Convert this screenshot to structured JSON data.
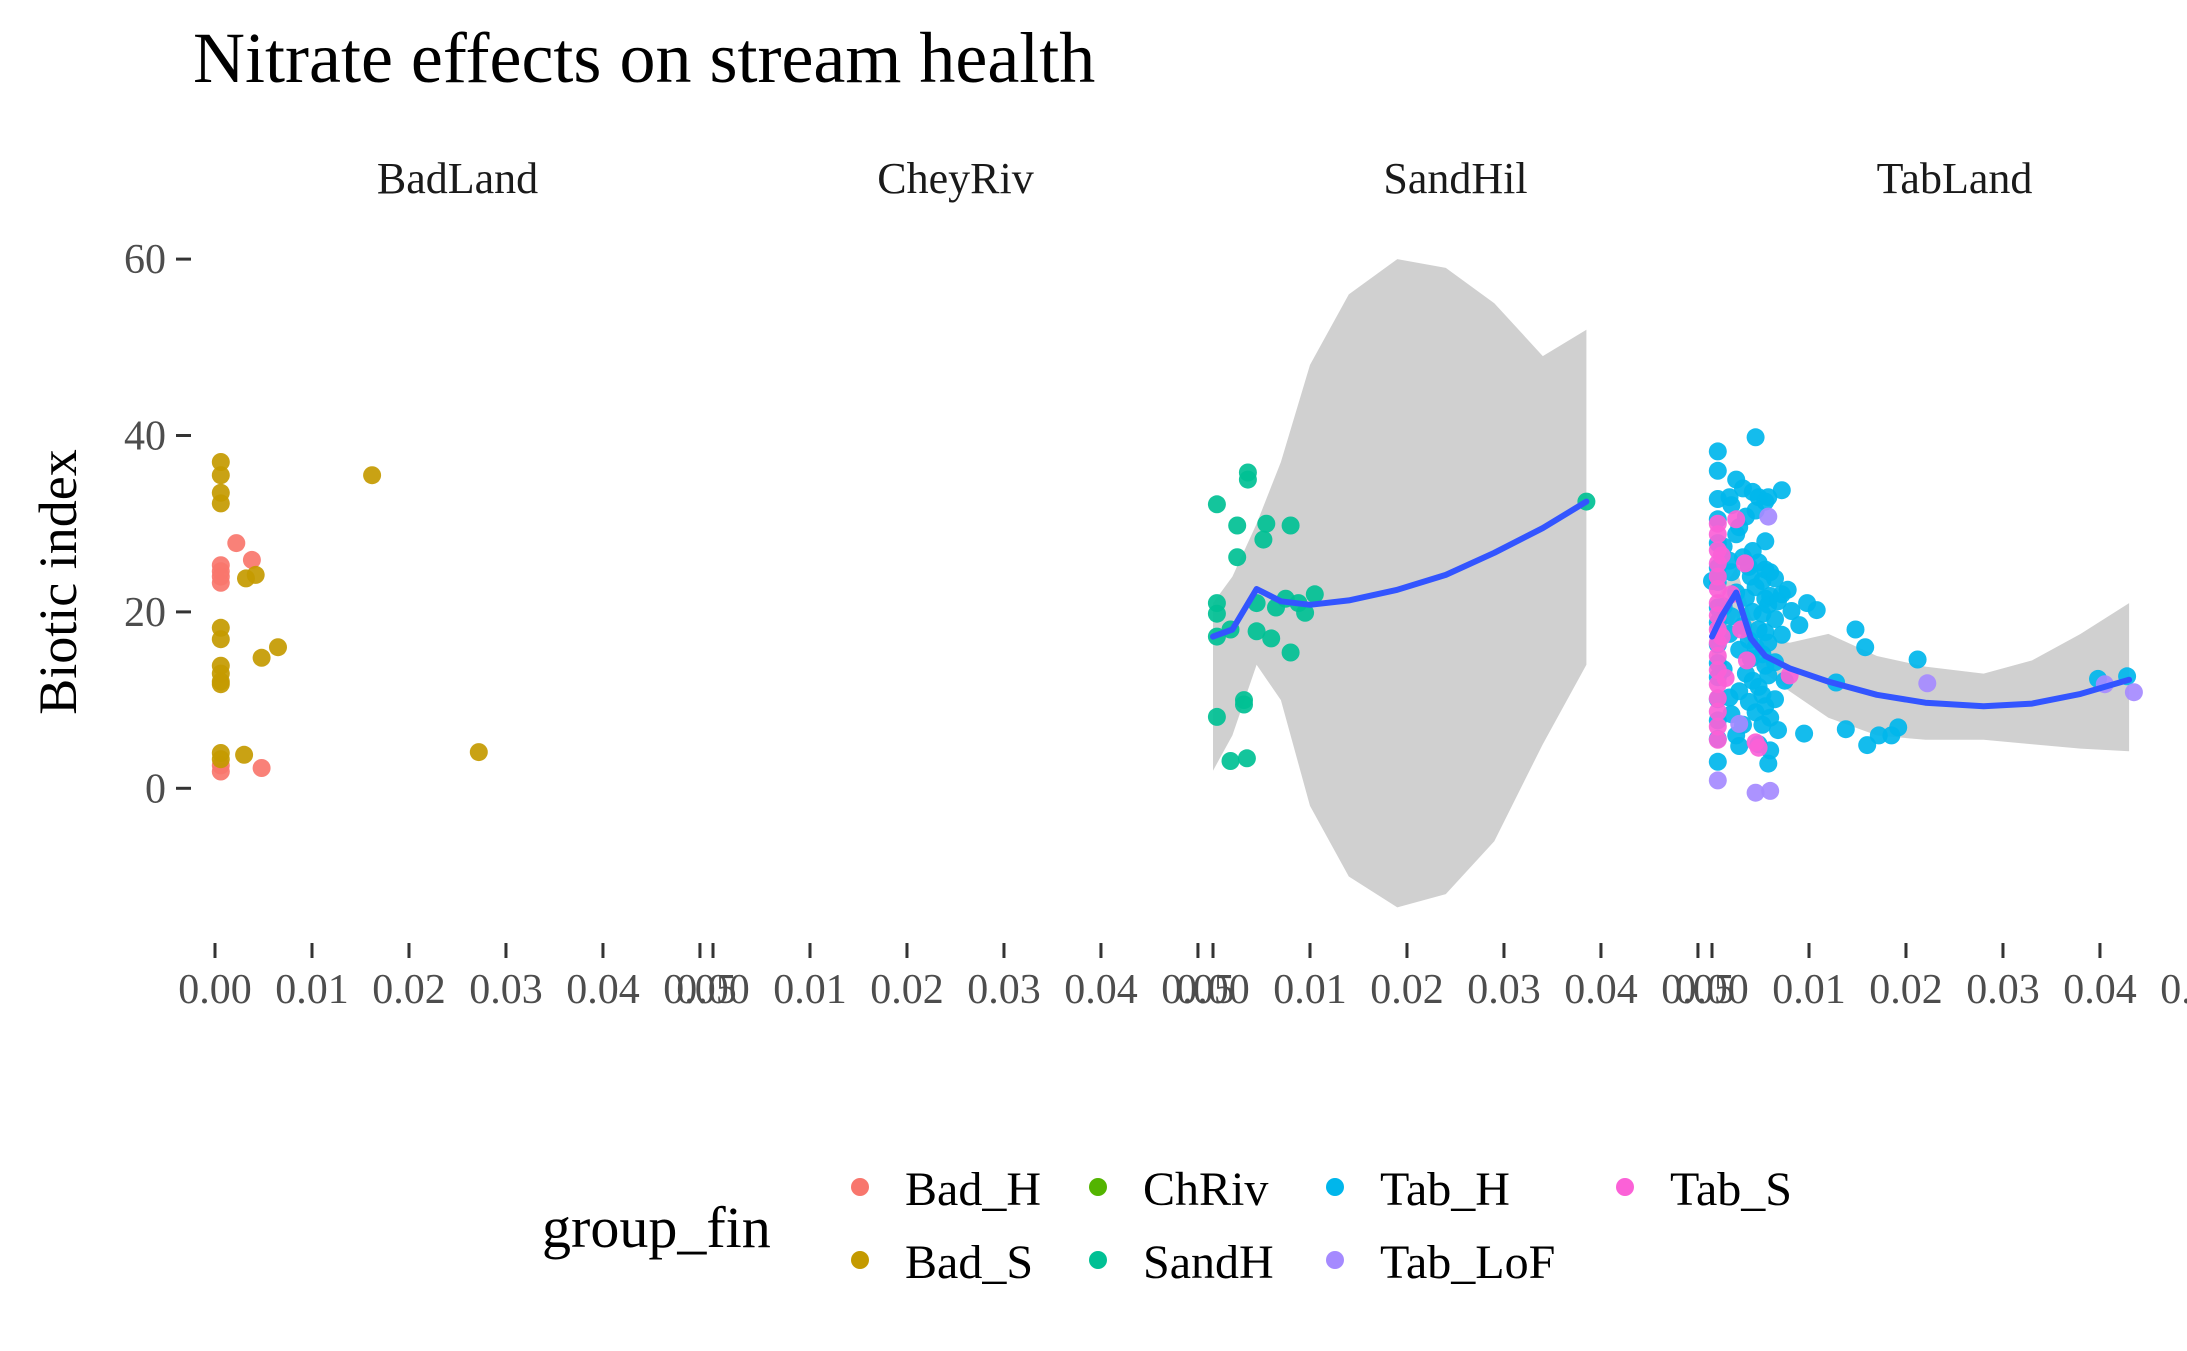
{
  "chart_data": {
    "type": "scatter",
    "title": "Nitrate effects on stream health",
    "ylabel": "Biotic index",
    "xlabel": "",
    "panels": [
      "BadLand",
      "CheyRiv",
      "SandHil",
      "TabLand"
    ],
    "xlim": [
      0,
      0.05
    ],
    "ylim": [
      -14,
      61
    ],
    "x_ticks": [
      "0.00",
      "0.01",
      "0.02",
      "0.03",
      "0.04",
      "0.05"
    ],
    "y_ticks": [
      0,
      20,
      40,
      60
    ],
    "grid": false,
    "legend": {
      "title": "group_fin",
      "position": "bottom",
      "entries": [
        {
          "name": "Bad_H",
          "color": "#F8766D"
        },
        {
          "name": "Bad_S",
          "color": "#C49A00"
        },
        {
          "name": "ChRiv",
          "color": "#53B400"
        },
        {
          "name": "SandH",
          "color": "#00C094"
        },
        {
          "name": "Tab_H",
          "color": "#00B6EB"
        },
        {
          "name": "Tab_LoF",
          "color": "#A58AFF"
        },
        {
          "name": "Tab_S",
          "color": "#FB61D7"
        }
      ]
    },
    "smooth_color": "#3355FF",
    "ribbon_color": "#D0D0D0",
    "series": [
      {
        "name": "Bad_H",
        "panel": "BadLand",
        "points": [
          [
            0.0006,
            25.3
          ],
          [
            0.0006,
            24.6
          ],
          [
            0.0006,
            23.3
          ],
          [
            0.0006,
            24.0
          ],
          [
            0.0006,
            2.6
          ],
          [
            0.0006,
            1.9
          ],
          [
            0.0022,
            27.8
          ],
          [
            0.0038,
            25.9
          ],
          [
            0.0048,
            2.3
          ]
        ]
      },
      {
        "name": "Bad_S",
        "panel": "BadLand",
        "points": [
          [
            0.0006,
            37.0
          ],
          [
            0.0006,
            35.5
          ],
          [
            0.0006,
            33.5
          ],
          [
            0.0006,
            32.3
          ],
          [
            0.0006,
            18.2
          ],
          [
            0.0006,
            16.9
          ],
          [
            0.0006,
            13.9
          ],
          [
            0.0006,
            13.0
          ],
          [
            0.0006,
            12.1
          ],
          [
            0.0006,
            11.8
          ],
          [
            0.0006,
            4.0
          ],
          [
            0.0006,
            3.3
          ],
          [
            0.0032,
            23.8
          ],
          [
            0.0042,
            24.2
          ],
          [
            0.0048,
            14.8
          ],
          [
            0.0065,
            16.0
          ],
          [
            0.003,
            3.8
          ],
          [
            0.0162,
            35.5
          ],
          [
            0.0272,
            4.1
          ]
        ]
      },
      {
        "name": "SandH",
        "panel": "SandHil",
        "points": [
          [
            0.0004,
            32.2
          ],
          [
            0.0004,
            21.0
          ],
          [
            0.0004,
            19.8
          ],
          [
            0.0004,
            17.2
          ],
          [
            0.0004,
            8.1
          ],
          [
            0.0018,
            18.0
          ],
          [
            0.0018,
            3.1
          ],
          [
            0.0025,
            29.8
          ],
          [
            0.0025,
            26.2
          ],
          [
            0.0032,
            10.0
          ],
          [
            0.0032,
            9.5
          ],
          [
            0.0035,
            3.4
          ],
          [
            0.0036,
            35.8
          ],
          [
            0.0036,
            35.0
          ],
          [
            0.0045,
            21.0
          ],
          [
            0.0045,
            17.8
          ],
          [
            0.0052,
            28.2
          ],
          [
            0.0055,
            30.0
          ],
          [
            0.006,
            17.0
          ],
          [
            0.0065,
            20.5
          ],
          [
            0.0075,
            21.5
          ],
          [
            0.008,
            29.8
          ],
          [
            0.008,
            15.4
          ],
          [
            0.0088,
            21.0
          ],
          [
            0.0095,
            19.9
          ],
          [
            0.0105,
            22.0
          ],
          [
            0.0385,
            32.5
          ]
        ]
      },
      {
        "name": "Tab_H",
        "panel": "TabLand",
        "points": [
          [
            0.0006,
            38.2
          ],
          [
            0.0006,
            36.0
          ],
          [
            0.0006,
            32.8
          ],
          [
            0.0006,
            30.5
          ],
          [
            0.0006,
            27.8
          ],
          [
            0.0006,
            25.0
          ],
          [
            0.0006,
            23.4
          ],
          [
            0.0006,
            20.5
          ],
          [
            0.0006,
            18.8
          ],
          [
            0.0006,
            16.3
          ],
          [
            0.0006,
            14.2
          ],
          [
            0.0006,
            12.6
          ],
          [
            0.0006,
            10.1
          ],
          [
            0.0006,
            7.7
          ],
          [
            0.0006,
            5.6
          ],
          [
            0.0006,
            3.0
          ],
          [
            0.0,
            23.5
          ],
          [
            0.0012,
            27.4
          ],
          [
            0.0012,
            20.6
          ],
          [
            0.0012,
            13.5
          ],
          [
            0.0018,
            33.0
          ],
          [
            0.0018,
            25.8
          ],
          [
            0.0018,
            17.5
          ],
          [
            0.0018,
            10.3
          ],
          [
            0.002,
            32.1
          ],
          [
            0.002,
            24.5
          ],
          [
            0.002,
            19.5
          ],
          [
            0.002,
            8.4
          ],
          [
            0.0025,
            35.0
          ],
          [
            0.0025,
            28.8
          ],
          [
            0.0025,
            22.2
          ],
          [
            0.0025,
            6.0
          ],
          [
            0.0028,
            29.6
          ],
          [
            0.0028,
            15.7
          ],
          [
            0.0028,
            11.0
          ],
          [
            0.0028,
            4.8
          ],
          [
            0.0032,
            34.0
          ],
          [
            0.0032,
            26.2
          ],
          [
            0.0032,
            18.4
          ],
          [
            0.0032,
            7.2
          ],
          [
            0.0035,
            30.8
          ],
          [
            0.0035,
            21.6
          ],
          [
            0.0035,
            13.0
          ],
          [
            0.0038,
            25.1
          ],
          [
            0.0038,
            16.8
          ],
          [
            0.0038,
            9.8
          ],
          [
            0.004,
            24.0
          ],
          [
            0.004,
            14.7
          ],
          [
            0.0042,
            33.6
          ],
          [
            0.0042,
            26.9
          ],
          [
            0.0042,
            20.0
          ],
          [
            0.0042,
            12.2
          ],
          [
            0.0045,
            39.8
          ],
          [
            0.0045,
            31.5
          ],
          [
            0.0045,
            22.8
          ],
          [
            0.0045,
            16.0
          ],
          [
            0.0045,
            8.6
          ],
          [
            0.0048,
            33.0
          ],
          [
            0.0048,
            25.6
          ],
          [
            0.0048,
            18.0
          ],
          [
            0.0048,
            11.5
          ],
          [
            0.0048,
            5.0
          ],
          [
            0.0052,
            23.5
          ],
          [
            0.0052,
            19.8
          ],
          [
            0.0052,
            15.2
          ],
          [
            0.0052,
            10.6
          ],
          [
            0.0052,
            7.2
          ],
          [
            0.0055,
            32.5
          ],
          [
            0.0055,
            28.0
          ],
          [
            0.0055,
            24.8
          ],
          [
            0.0055,
            21.5
          ],
          [
            0.0055,
            17.7
          ],
          [
            0.0055,
            13.9
          ],
          [
            0.0055,
            9.3
          ],
          [
            0.0058,
            33.0
          ],
          [
            0.0058,
            20.8
          ],
          [
            0.0058,
            16.5
          ],
          [
            0.0058,
            12.8
          ],
          [
            0.0058,
            2.8
          ],
          [
            0.006,
            24.5
          ],
          [
            0.006,
            21.8
          ],
          [
            0.006,
            8.0
          ],
          [
            0.006,
            4.3
          ],
          [
            0.0065,
            23.8
          ],
          [
            0.0065,
            19.2
          ],
          [
            0.0065,
            14.3
          ],
          [
            0.0065,
            10.1
          ],
          [
            0.0068,
            21.2
          ],
          [
            0.0068,
            6.6
          ],
          [
            0.0072,
            33.8
          ],
          [
            0.0072,
            22.0
          ],
          [
            0.0072,
            17.4
          ],
          [
            0.0075,
            12.2
          ],
          [
            0.0078,
            22.5
          ],
          [
            0.0082,
            20.1
          ],
          [
            0.009,
            18.5
          ],
          [
            0.0095,
            6.2
          ],
          [
            0.0098,
            21.0
          ],
          [
            0.0108,
            20.2
          ],
          [
            0.0128,
            12.0
          ],
          [
            0.0138,
            6.7
          ],
          [
            0.0148,
            18.0
          ],
          [
            0.0158,
            16.0
          ],
          [
            0.016,
            4.9
          ],
          [
            0.0172,
            6.0
          ],
          [
            0.0185,
            6.0
          ],
          [
            0.0192,
            6.9
          ],
          [
            0.0212,
            14.6
          ],
          [
            0.0398,
            12.4
          ],
          [
            0.0428,
            12.7
          ]
        ]
      },
      {
        "name": "Tab_LoF",
        "panel": "TabLand",
        "points": [
          [
            0.0006,
            0.9
          ],
          [
            0.0028,
            7.3
          ],
          [
            0.0045,
            -0.5
          ],
          [
            0.0058,
            30.8
          ],
          [
            0.006,
            -0.3
          ],
          [
            0.0222,
            11.9
          ],
          [
            0.0405,
            11.8
          ],
          [
            0.0435,
            10.9
          ]
        ]
      },
      {
        "name": "Tab_S",
        "panel": "TabLand",
        "points": [
          [
            0.0006,
            30.0
          ],
          [
            0.0006,
            28.8
          ],
          [
            0.0006,
            27.0
          ],
          [
            0.0006,
            25.5
          ],
          [
            0.0006,
            24.0
          ],
          [
            0.0006,
            22.6
          ],
          [
            0.0006,
            21.0
          ],
          [
            0.0006,
            19.6
          ],
          [
            0.0006,
            18.0
          ],
          [
            0.0006,
            16.5
          ],
          [
            0.0006,
            15.0
          ],
          [
            0.0006,
            13.4
          ],
          [
            0.0006,
            11.8
          ],
          [
            0.0006,
            10.2
          ],
          [
            0.0006,
            8.7
          ],
          [
            0.0006,
            7.0
          ],
          [
            0.0006,
            5.5
          ],
          [
            0.001,
            26.4
          ],
          [
            0.001,
            17.2
          ],
          [
            0.0014,
            12.5
          ],
          [
            0.002,
            22.0
          ],
          [
            0.0025,
            30.5
          ],
          [
            0.003,
            18.0
          ],
          [
            0.0034,
            25.5
          ],
          [
            0.0036,
            14.5
          ],
          [
            0.0045,
            5.2
          ],
          [
            0.0048,
            4.6
          ],
          [
            0.008,
            12.8
          ]
        ]
      }
    ],
    "smooth": [
      {
        "panel": "SandHil",
        "points": [
          [
            0.0,
            17.2,
            2.0,
            21.0
          ],
          [
            0.002,
            18.0,
            6.0,
            24.0
          ],
          [
            0.0045,
            22.6,
            14.0,
            30.0
          ],
          [
            0.007,
            21.2,
            10.0,
            37.0
          ],
          [
            0.01,
            20.8,
            -2.0,
            48.0
          ],
          [
            0.014,
            21.3,
            -10.0,
            56.0
          ],
          [
            0.019,
            22.5,
            -13.5,
            60.0
          ],
          [
            0.024,
            24.2,
            -12.0,
            59.0
          ],
          [
            0.029,
            26.7,
            -6.0,
            55.0
          ],
          [
            0.034,
            29.5,
            5.0,
            49.0
          ],
          [
            0.0385,
            32.5,
            14.0,
            52.0
          ]
        ]
      },
      {
        "panel": "TabLand",
        "points": [
          [
            0.0,
            17.2,
            14.0,
            20.0
          ],
          [
            0.001,
            19.5,
            16.0,
            22.5
          ],
          [
            0.0025,
            22.2,
            19.5,
            25.0
          ],
          [
            0.004,
            17.0,
            14.5,
            19.5
          ],
          [
            0.0055,
            15.0,
            13.0,
            17.0
          ],
          [
            0.008,
            13.6,
            11.0,
            16.5
          ],
          [
            0.012,
            12.1,
            8.0,
            17.5
          ],
          [
            0.017,
            10.6,
            6.0,
            15.0
          ],
          [
            0.022,
            9.7,
            5.5,
            13.8
          ],
          [
            0.028,
            9.3,
            5.5,
            13.0
          ],
          [
            0.033,
            9.6,
            5.0,
            14.5
          ],
          [
            0.038,
            10.7,
            4.5,
            17.5
          ],
          [
            0.043,
            12.3,
            4.2,
            21.0
          ]
        ]
      }
    ]
  }
}
